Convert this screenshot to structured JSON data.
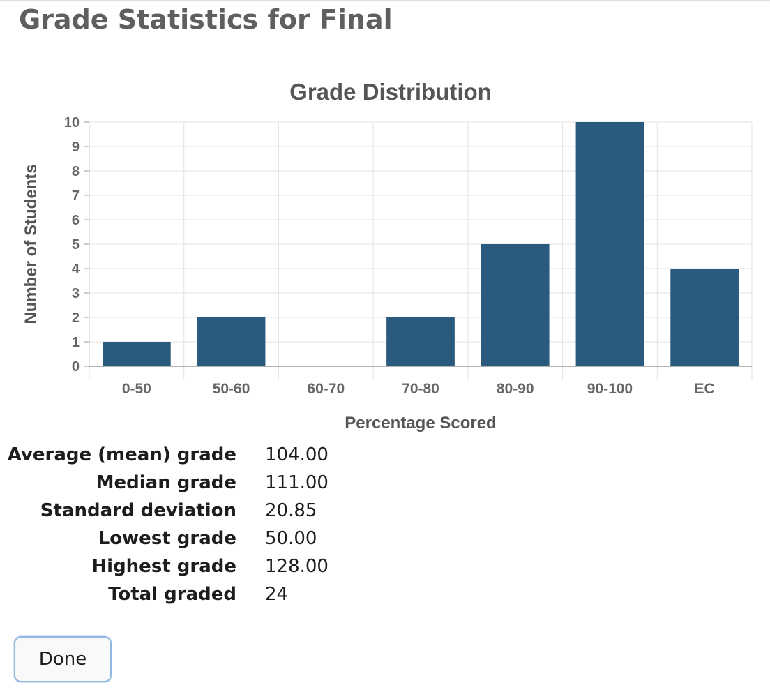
{
  "dialog": {
    "title": "Grade Statistics for Final",
    "done_label": "Done"
  },
  "chart_data": {
    "type": "bar",
    "title": "Grade Distribution",
    "xlabel": "Percentage Scored",
    "ylabel": "Number of Students",
    "categories": [
      "0-50",
      "50-60",
      "60-70",
      "70-80",
      "80-90",
      "90-100",
      "EC"
    ],
    "values": [
      1,
      2,
      0,
      2,
      5,
      10,
      4
    ],
    "ylim": [
      0,
      10
    ],
    "yticks": [
      "0",
      "1",
      "2",
      "3",
      "4",
      "5",
      "6",
      "7",
      "8",
      "9",
      "10"
    ],
    "grid": true,
    "bar_color": "#2a5a7e"
  },
  "stats": [
    {
      "label": "Average (mean) grade",
      "value": "104.00"
    },
    {
      "label": "Median grade",
      "value": "111.00"
    },
    {
      "label": "Standard deviation",
      "value": "20.85"
    },
    {
      "label": "Lowest grade",
      "value": "50.00"
    },
    {
      "label": "Highest grade",
      "value": "128.00"
    },
    {
      "label": "Total graded",
      "value": "24"
    }
  ]
}
